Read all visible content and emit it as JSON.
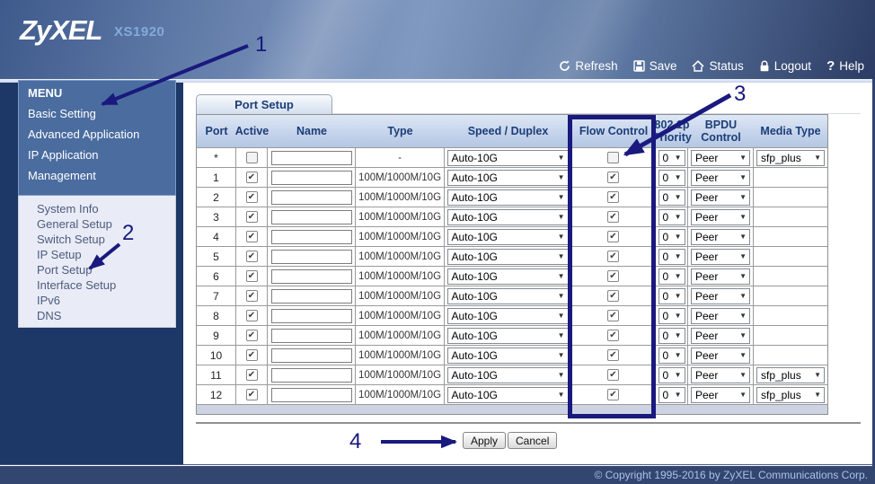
{
  "header": {
    "logo": "ZyXEL",
    "model": "XS1920",
    "nav": [
      {
        "icon": "refresh-icon",
        "label": "Refresh"
      },
      {
        "icon": "save-icon",
        "label": "Save"
      },
      {
        "icon": "status-icon",
        "label": "Status"
      },
      {
        "icon": "logout-icon",
        "label": "Logout"
      },
      {
        "icon": "help-icon",
        "label": "? Help"
      }
    ],
    "nav_labels": {
      "refresh": "Refresh",
      "save": "Save",
      "status": "Status",
      "logout": "Logout",
      "help": "Help"
    }
  },
  "sidebar": {
    "menu_title": "MENU",
    "menu_items": [
      "Basic Setting",
      "Advanced Application",
      "IP Application",
      "Management"
    ],
    "submenu_items": [
      "System Info",
      "General Setup",
      "Switch Setup",
      "IP Setup",
      "Port Setup",
      "Interface Setup",
      "IPv6",
      "DNS"
    ]
  },
  "main": {
    "tab_label": "Port Setup",
    "table": {
      "columns": [
        "Port",
        "Active",
        "Name",
        "Type",
        "Speed / Duplex",
        "Flow Control",
        "802.1p Priority",
        "BPDU Control",
        "Media Type"
      ],
      "rows": [
        {
          "port": "*",
          "active": false,
          "name": "",
          "type": "-",
          "speed": "Auto-10G",
          "flow_control": false,
          "priority": "0",
          "bpdu": "Peer",
          "media": "sfp_plus"
        },
        {
          "port": "1",
          "active": true,
          "name": "",
          "type": "100M/1000M/10G",
          "speed": "Auto-10G",
          "flow_control": true,
          "priority": "0",
          "bpdu": "Peer",
          "media": null
        },
        {
          "port": "2",
          "active": true,
          "name": "",
          "type": "100M/1000M/10G",
          "speed": "Auto-10G",
          "flow_control": true,
          "priority": "0",
          "bpdu": "Peer",
          "media": null
        },
        {
          "port": "3",
          "active": true,
          "name": "",
          "type": "100M/1000M/10G",
          "speed": "Auto-10G",
          "flow_control": true,
          "priority": "0",
          "bpdu": "Peer",
          "media": null
        },
        {
          "port": "4",
          "active": true,
          "name": "",
          "type": "100M/1000M/10G",
          "speed": "Auto-10G",
          "flow_control": true,
          "priority": "0",
          "bpdu": "Peer",
          "media": null
        },
        {
          "port": "5",
          "active": true,
          "name": "",
          "type": "100M/1000M/10G",
          "speed": "Auto-10G",
          "flow_control": true,
          "priority": "0",
          "bpdu": "Peer",
          "media": null
        },
        {
          "port": "6",
          "active": true,
          "name": "",
          "type": "100M/1000M/10G",
          "speed": "Auto-10G",
          "flow_control": true,
          "priority": "0",
          "bpdu": "Peer",
          "media": null
        },
        {
          "port": "7",
          "active": true,
          "name": "",
          "type": "100M/1000M/10G",
          "speed": "Auto-10G",
          "flow_control": true,
          "priority": "0",
          "bpdu": "Peer",
          "media": null
        },
        {
          "port": "8",
          "active": true,
          "name": "",
          "type": "100M/1000M/10G",
          "speed": "Auto-10G",
          "flow_control": true,
          "priority": "0",
          "bpdu": "Peer",
          "media": null
        },
        {
          "port": "9",
          "active": true,
          "name": "",
          "type": "100M/1000M/10G",
          "speed": "Auto-10G",
          "flow_control": true,
          "priority": "0",
          "bpdu": "Peer",
          "media": null
        },
        {
          "port": "10",
          "active": true,
          "name": "",
          "type": "100M/1000M/10G",
          "speed": "Auto-10G",
          "flow_control": true,
          "priority": "0",
          "bpdu": "Peer",
          "media": null
        },
        {
          "port": "11",
          "active": true,
          "name": "",
          "type": "100M/1000M/10G",
          "speed": "Auto-10G",
          "flow_control": true,
          "priority": "0",
          "bpdu": "Peer",
          "media": "sfp_plus"
        },
        {
          "port": "12",
          "active": true,
          "name": "",
          "type": "100M/1000M/10G",
          "speed": "Auto-10G",
          "flow_control": true,
          "priority": "0",
          "bpdu": "Peer",
          "media": "sfp_plus"
        }
      ]
    },
    "buttons": {
      "apply": "Apply",
      "cancel": "Cancel"
    }
  },
  "annotations": {
    "labels": [
      "1",
      "2",
      "3",
      "4"
    ]
  },
  "footer": {
    "copyright": "© Copyright 1995-2016 by ZyXEL Communications Corp."
  },
  "colors": {
    "annotation": "#19197e",
    "header_navy": "#2c3c64",
    "sidebar_bg": "#1d3766",
    "menu_box": "#4a6c9f",
    "submenu_bg": "#e9ecf7",
    "table_header_text": "#1c3d77",
    "footer_bar": "#33466f",
    "footer_text": "#a9c3e9"
  }
}
